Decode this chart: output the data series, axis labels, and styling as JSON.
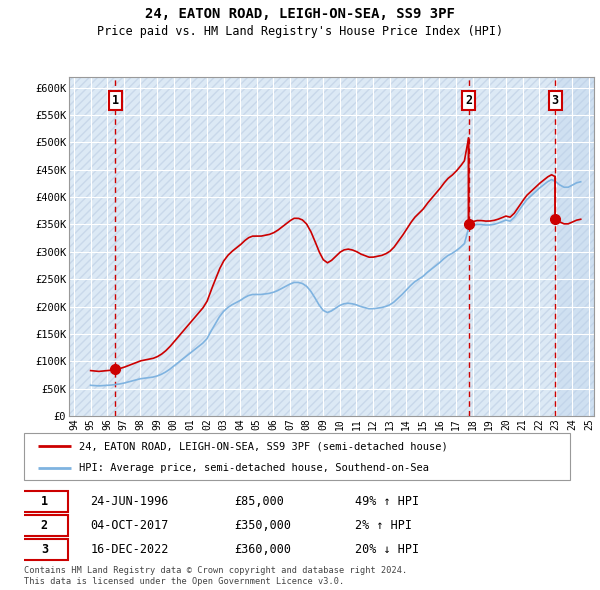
{
  "title": "24, EATON ROAD, LEIGH-ON-SEA, SS9 3PF",
  "subtitle": "Price paid vs. HM Land Registry's House Price Index (HPI)",
  "background_color": "#ffffff",
  "plot_bg_color": "#dce9f5",
  "grid_color": "#ffffff",
  "sale_color": "#cc0000",
  "hpi_color": "#7fb3e0",
  "vline_color": "#cc0000",
  "shade_color": "#d4e5f5",
  "ylim": [
    0,
    620000
  ],
  "yticks": [
    0,
    50000,
    100000,
    150000,
    200000,
    250000,
    300000,
    350000,
    400000,
    450000,
    500000,
    550000,
    600000
  ],
  "ytick_labels": [
    "£0",
    "£50K",
    "£100K",
    "£150K",
    "£200K",
    "£250K",
    "£300K",
    "£350K",
    "£400K",
    "£450K",
    "£500K",
    "£550K",
    "£600K"
  ],
  "xlim_start": 1993.7,
  "xlim_end": 2025.3,
  "sales": [
    {
      "date": 1996.48,
      "price": 85000,
      "label": "1"
    },
    {
      "date": 2017.75,
      "price": 350000,
      "label": "2"
    },
    {
      "date": 2022.96,
      "price": 360000,
      "label": "3"
    }
  ],
  "legend_entries": [
    "24, EATON ROAD, LEIGH-ON-SEA, SS9 3PF (semi-detached house)",
    "HPI: Average price, semi-detached house, Southend-on-Sea"
  ],
  "table_rows": [
    {
      "num": "1",
      "date": "24-JUN-1996",
      "price": "£85,000",
      "hpi": "49% ↑ HPI"
    },
    {
      "num": "2",
      "date": "04-OCT-2017",
      "price": "£350,000",
      "hpi": "2% ↑ HPI"
    },
    {
      "num": "3",
      "date": "16-DEC-2022",
      "price": "£360,000",
      "hpi": "20% ↓ HPI"
    }
  ],
  "footer": "Contains HM Land Registry data © Crown copyright and database right 2024.\nThis data is licensed under the Open Government Licence v3.0."
}
